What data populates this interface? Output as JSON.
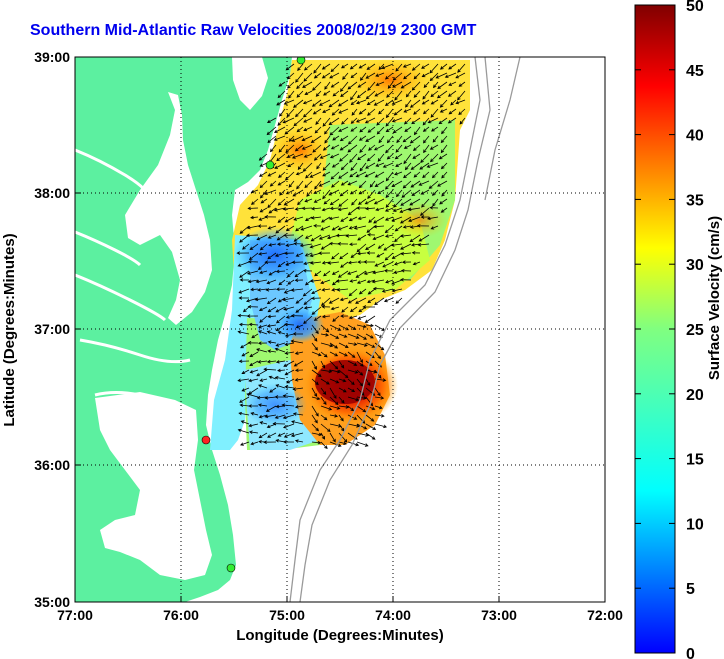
{
  "title": "Southern Mid-Atlantic Raw Velocities 2008/02/19 2300 GMT",
  "x_axis": {
    "label": "Longitude (Degrees:Minutes)",
    "ticks": [
      "77:00",
      "76:00",
      "75:00",
      "74:00",
      "73:00",
      "72:00"
    ]
  },
  "y_axis": {
    "label": "Latitude (Degrees:Minutes)",
    "ticks": [
      "39:00",
      "38:00",
      "37:00",
      "36:00",
      "35:00"
    ]
  },
  "colorbar": {
    "label": "Surface Velocity (cm/s)",
    "ticks": [
      "50",
      "45",
      "40",
      "35",
      "30",
      "25",
      "20",
      "15",
      "10",
      "5",
      "0"
    ],
    "range": [
      0,
      50
    ],
    "colormap": "jet"
  },
  "colors": {
    "land": "#5cf0a0",
    "water": "#ffffff",
    "station_green": "#33ee33",
    "station_red": "#ff2222",
    "bathymetry": "#999999",
    "title": "#0000ee"
  },
  "map_extent": {
    "lon": [
      -77,
      -72
    ],
    "lat": [
      35,
      39
    ]
  },
  "stations": [
    {
      "color": "green"
    },
    {
      "color": "green"
    },
    {
      "color": "red"
    },
    {
      "color": "green"
    }
  ]
}
